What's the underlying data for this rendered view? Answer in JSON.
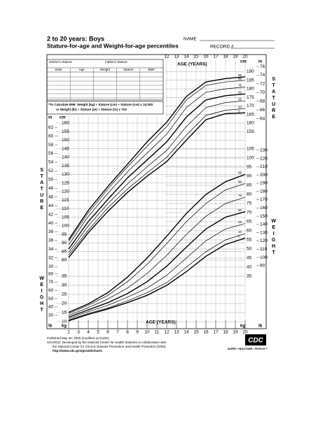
{
  "header": {
    "title": "2 to 20 years: Boys",
    "subtitle": "Stature-for-age and Weight-for-age percentiles",
    "name_label": "NAME",
    "record_label": "RECORD #"
  },
  "record_table": {
    "mother": "Mother's Stature",
    "father": "Father's Stature",
    "columns": [
      "Date",
      "Age",
      "Weight",
      "Stature",
      "BMI*"
    ]
  },
  "bmi_note": [
    "*To Calculate BMI: Weight (kg) ÷ Stature (cm) ÷ Stature (cm) x 10,000",
    "or Weight (lb) ÷ Stature (in) ÷ Stature (in) x 703"
  ],
  "chart_data": [
    {
      "type": "line",
      "x_label": "AGE (YEARS)",
      "y_label": "STATURE",
      "y_unit": "cm",
      "y2_unit": "in",
      "x": [
        2,
        4,
        6,
        8,
        10,
        12,
        14,
        16,
        18,
        20
      ],
      "xlim": [
        2,
        20
      ],
      "xticks": [
        2,
        3,
        4,
        5,
        6,
        7,
        8,
        9,
        10,
        11,
        12,
        13,
        14,
        15,
        16,
        17,
        18,
        19,
        20
      ],
      "ylim": [
        76,
        197
      ],
      "yticks": [
        80,
        85,
        90,
        95,
        100,
        105,
        110,
        115,
        120,
        125,
        130,
        135,
        140,
        145,
        150,
        155,
        160,
        165,
        170,
        175,
        180,
        185,
        190
      ],
      "y2lim": [
        29.92,
        77.56
      ],
      "y2ticks": [
        30,
        32,
        34,
        36,
        38,
        40,
        42,
        44,
        46,
        48,
        50,
        52,
        54,
        56,
        58,
        60,
        62,
        64,
        66,
        68,
        70,
        72,
        74,
        76
      ],
      "color": "#000000",
      "series": [
        {
          "name": "95",
          "values": [
            92,
            109,
            123,
            136,
            149,
            160.5,
            175.5,
            184,
            186,
            187
          ]
        },
        {
          "name": "90",
          "values": [
            91,
            107.5,
            121.5,
            134.5,
            146.5,
            158,
            173.5,
            182,
            184,
            185
          ]
        },
        {
          "name": "75",
          "values": [
            89,
            105.5,
            119,
            131.5,
            142.5,
            153.5,
            169,
            178,
            180,
            181
          ]
        },
        {
          "name": "50",
          "values": [
            86.5,
            102.5,
            115.5,
            128,
            138.5,
            149,
            163.5,
            173.5,
            176,
            177
          ]
        },
        {
          "name": "25",
          "values": [
            84.5,
            100,
            113,
            124.5,
            134.5,
            144,
            158,
            169,
            172,
            173
          ]
        },
        {
          "name": "10",
          "values": [
            83,
            97.5,
            110.5,
            121.5,
            131,
            140,
            153,
            164.5,
            167.5,
            168.5
          ]
        },
        {
          "name": "5",
          "values": [
            81.5,
            96,
            108.5,
            119.5,
            129,
            137.5,
            150,
            162,
            165.5,
            166
          ]
        }
      ]
    },
    {
      "type": "line",
      "x_label": "AGE (YEARS)",
      "y_label": "WEIGHT",
      "y_unit": "kg",
      "y2_unit": "lb",
      "x": [
        2,
        4,
        6,
        8,
        10,
        12,
        14,
        16,
        18,
        20
      ],
      "xlim": [
        2,
        20
      ],
      "ylim": [
        8,
        105
      ],
      "yticks": [
        10,
        15,
        20,
        25,
        30,
        35,
        40,
        45,
        50,
        55,
        60,
        65,
        70,
        75,
        80,
        85,
        90,
        95,
        100,
        105
      ],
      "y2lim": [
        17.64,
        231.49
      ],
      "y2ticks": [
        30,
        40,
        50,
        60,
        70,
        80,
        90,
        100,
        110,
        120,
        130,
        140,
        150,
        160,
        170,
        180,
        190,
        200,
        210,
        220,
        230
      ],
      "color": "#000000",
      "series": [
        {
          "name": "95",
          "values": [
            15.2,
            19.8,
            26,
            34.5,
            45,
            57,
            69.5,
            80,
            87,
            91
          ]
        },
        {
          "name": "90",
          "values": [
            14.5,
            19,
            24.5,
            32,
            41.5,
            53,
            65,
            75,
            82.5,
            86
          ]
        },
        {
          "name": "75",
          "values": [
            13.5,
            17.7,
            22.5,
            28.5,
            36.5,
            46.5,
            58,
            68,
            75,
            78.5
          ]
        },
        {
          "name": "50",
          "values": [
            12.5,
            16.5,
            20.5,
            25.5,
            32,
            40.5,
            51,
            61,
            67.5,
            70.5
          ]
        },
        {
          "name": "25",
          "values": [
            11.7,
            15.5,
            19,
            23.5,
            28.5,
            35.5,
            45,
            54.5,
            61,
            64
          ]
        },
        {
          "name": "10",
          "values": [
            11,
            14.5,
            17.5,
            21.5,
            26,
            31.5,
            40,
            48.5,
            55,
            58.5
          ]
        },
        {
          "name": "5",
          "values": [
            10.5,
            14,
            17,
            20.5,
            24.5,
            30,
            37.5,
            46,
            52.5,
            56
          ]
        }
      ]
    }
  ],
  "footer": {
    "lines": [
      "Published May 30, 2000 (modified 11/21/00).",
      "SOURCE: Developed by the National Center for Health Statistics in collaboration with",
      "the National Center for Chronic Disease Prevention and Health Promotion (2000).",
      "http://www.cdc.gov/growthcharts"
    ],
    "logo": "CDC",
    "tagline": "SAFER • HEALTHIER • PEOPLE™"
  }
}
